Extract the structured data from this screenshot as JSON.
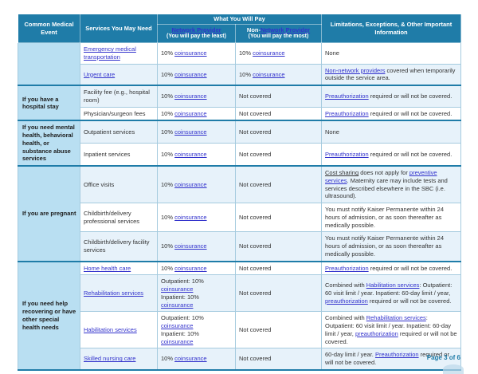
{
  "colors": {
    "header_bg": "#1f7ca8",
    "group_bg": "#b9dff2",
    "shaded_row_bg": "#e7f2fa",
    "link": "#3232cc",
    "accent": "#1f7ca8",
    "border": "#a5cbdf"
  },
  "header": {
    "common_medical_event": "Common Medical Event",
    "services_you_may_need": "Services You May Need",
    "what_you_will_pay": "What You Will Pay",
    "network_provider": [
      {
        "t": "Network Provider",
        "link": true
      }
    ],
    "network_provider_sub": "(You will pay the least)",
    "non_network_provider": [
      {
        "t": "Non-"
      },
      {
        "t": "Network Provider",
        "link": true
      }
    ],
    "non_network_provider_sub": "(You will pay the most)",
    "limitations": "Limitations, Exceptions, & Other Important Information"
  },
  "groups": [
    {
      "label": "",
      "rows": [
        {
          "shaded": false,
          "service": [
            {
              "t": "Emergency medical transportation",
              "link": true
            }
          ],
          "network": [
            {
              "t": "10% "
            },
            {
              "t": "coinsurance",
              "link": true
            }
          ],
          "non_network": [
            {
              "t": "10% "
            },
            {
              "t": "coinsurance",
              "link": true
            }
          ],
          "limitations": [
            {
              "t": "None"
            }
          ]
        },
        {
          "shaded": true,
          "service": [
            {
              "t": "Urgent care",
              "link": true
            }
          ],
          "network": [
            {
              "t": "10% "
            },
            {
              "t": "coinsurance",
              "link": true
            }
          ],
          "non_network": [
            {
              "t": "10% "
            },
            {
              "t": "coinsurance",
              "link": true
            }
          ],
          "limitations": [
            {
              "t": "Non-network providers",
              "link": true
            },
            {
              "t": " covered when temporarily outside the service area."
            }
          ]
        }
      ]
    },
    {
      "label": "If you have a hospital stay",
      "rows": [
        {
          "shaded": true,
          "service": [
            {
              "t": "Facility fee (e.g., hospital room)"
            }
          ],
          "network": [
            {
              "t": "10% "
            },
            {
              "t": "coinsurance",
              "link": true
            }
          ],
          "non_network": [
            {
              "t": "Not covered"
            }
          ],
          "limitations": [
            {
              "t": "Preauthorization",
              "link": true
            },
            {
              "t": " required or will not be covered."
            }
          ]
        },
        {
          "shaded": false,
          "service": [
            {
              "t": "Physician/surgeon fees"
            }
          ],
          "network": [
            {
              "t": "10% "
            },
            {
              "t": "coinsurance",
              "link": true
            }
          ],
          "non_network": [
            {
              "t": "Not covered"
            }
          ],
          "limitations": [
            {
              "t": "Preauthorization",
              "link": true
            },
            {
              "t": " required or will not be covered."
            }
          ]
        }
      ]
    },
    {
      "label": "If you need mental health, behavioral health, or substance abuse services",
      "rows": [
        {
          "shaded": true,
          "service": [
            {
              "t": "Outpatient services"
            }
          ],
          "network": [
            {
              "t": "10% "
            },
            {
              "t": "coinsurance",
              "link": true
            }
          ],
          "non_network": [
            {
              "t": "Not covered"
            }
          ],
          "limitations": [
            {
              "t": "None"
            }
          ]
        },
        {
          "shaded": false,
          "service": [
            {
              "t": "Inpatient services"
            }
          ],
          "network": [
            {
              "t": "10% "
            },
            {
              "t": "coinsurance",
              "link": true
            }
          ],
          "non_network": [
            {
              "t": "Not covered"
            }
          ],
          "limitations": [
            {
              "t": "Preauthorization",
              "link": true
            },
            {
              "t": " required or will not be covered."
            }
          ]
        }
      ]
    },
    {
      "label": "If you are pregnant",
      "rows": [
        {
          "shaded": true,
          "service": [
            {
              "t": "Office visits"
            }
          ],
          "network": [
            {
              "t": "10% "
            },
            {
              "t": "coinsurance",
              "link": true
            }
          ],
          "non_network": [
            {
              "t": "Not covered"
            }
          ],
          "limitations": [
            {
              "t": "Cost sharing",
              "u": true
            },
            {
              "t": " does not apply for "
            },
            {
              "t": "preventive services",
              "link": true
            },
            {
              "t": ". Maternity care may include tests and services described elsewhere in the SBC (i.e. ultrasound)."
            }
          ]
        },
        {
          "shaded": false,
          "service": [
            {
              "t": "Childbirth/delivery professional services"
            }
          ],
          "network": [
            {
              "t": "10% "
            },
            {
              "t": "coinsurance",
              "link": true
            }
          ],
          "non_network": [
            {
              "t": "Not covered"
            }
          ],
          "limitations": [
            {
              "t": "You must notify Kaiser Permanente within 24 hours of admission, or as soon thereafter as medically possible."
            }
          ]
        },
        {
          "shaded": true,
          "service": [
            {
              "t": "Childbirth/delivery facility services"
            }
          ],
          "network": [
            {
              "t": "10% "
            },
            {
              "t": "coinsurance",
              "link": true
            }
          ],
          "non_network": [
            {
              "t": "Not covered"
            }
          ],
          "limitations": [
            {
              "t": "You must notify Kaiser Permanente within 24 hours of admission, or as soon thereafter as medically possible."
            }
          ]
        }
      ]
    },
    {
      "label": "If you need help recovering or have other special health needs",
      "rows": [
        {
          "shaded": false,
          "service": [
            {
              "t": "Home health care",
              "link": true
            }
          ],
          "network": [
            {
              "t": "10% "
            },
            {
              "t": "coinsurance",
              "link": true
            }
          ],
          "non_network": [
            {
              "t": "Not covered"
            }
          ],
          "limitations": [
            {
              "t": "Preauthorization",
              "link": true
            },
            {
              "t": " required or will not be covered."
            }
          ]
        },
        {
          "shaded": true,
          "service": [
            {
              "t": "Rehabilitation services",
              "link": true
            }
          ],
          "network": [
            {
              "t": "Outpatient: 10%"
            },
            {
              "br": true
            },
            {
              "t": "coinsurance",
              "link": true
            },
            {
              "br": true
            },
            {
              "t": "Inpatient: 10%"
            },
            {
              "br": true
            },
            {
              "t": "coinsurance",
              "link": true
            }
          ],
          "non_network": [
            {
              "t": "Not covered"
            }
          ],
          "limitations": [
            {
              "t": "Combined with "
            },
            {
              "t": "Habilitation services",
              "link": true
            },
            {
              "t": ": Outpatient: 60 visit limit / year. Inpatient: 60-day limit / year, "
            },
            {
              "t": "preauthorization",
              "link": true
            },
            {
              "t": " required or will not be covered."
            }
          ]
        },
        {
          "shaded": false,
          "service": [
            {
              "t": "Habilitation services",
              "link": true
            }
          ],
          "network": [
            {
              "t": "Outpatient: 10%"
            },
            {
              "br": true
            },
            {
              "t": "coinsurance",
              "link": true
            },
            {
              "br": true
            },
            {
              "t": "Inpatient: 10%"
            },
            {
              "br": true
            },
            {
              "t": "coinsurance",
              "link": true
            }
          ],
          "non_network": [
            {
              "t": "Not covered"
            }
          ],
          "limitations": [
            {
              "t": "Combined with "
            },
            {
              "t": "Rehabilitation services",
              "link": true
            },
            {
              "t": ": Outpatient: 60 visit limit / year. Inpatient: 60-day limit / year, "
            },
            {
              "t": "preauthorization",
              "link": true
            },
            {
              "t": " required or will not be covered."
            }
          ]
        },
        {
          "shaded": true,
          "service": [
            {
              "t": "Skilled nursing care",
              "link": true
            }
          ],
          "network": [
            {
              "t": "10% "
            },
            {
              "t": "coinsurance",
              "link": true
            }
          ],
          "non_network": [
            {
              "t": "Not covered"
            }
          ],
          "limitations": [
            {
              "t": "60-day limit / year. "
            },
            {
              "t": "Preauthorization",
              "link": true
            },
            {
              "t": " required or will not be covered."
            }
          ]
        }
      ]
    }
  ],
  "footer": {
    "page_label": "Page 3 of 6"
  }
}
